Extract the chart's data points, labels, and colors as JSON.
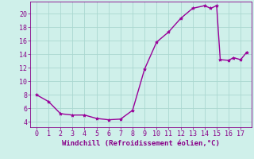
{
  "x": [
    0,
    1,
    2,
    3,
    4,
    5,
    6,
    7,
    8,
    9,
    10,
    11,
    12,
    13,
    14,
    14.5,
    15,
    15.3,
    16,
    16.4,
    17,
    17.5
  ],
  "y": [
    8,
    7,
    5.2,
    5,
    5,
    4.5,
    4.3,
    4.4,
    5.7,
    11.8,
    15.8,
    17.3,
    19.3,
    20.8,
    21.2,
    20.8,
    21.2,
    13.2,
    13.1,
    13.5,
    13.2,
    14.3
  ],
  "line_color": "#990099",
  "marker": "*",
  "marker_size": 3,
  "bg_color": "#cff0ea",
  "grid_color": "#aad8d0",
  "xlabel": "Windchill (Refroidissement éolien,°C)",
  "xlabel_color": "#880088",
  "tick_color": "#880088",
  "xlim": [
    -0.5,
    17.9
  ],
  "ylim": [
    3.2,
    21.8
  ],
  "xticks": [
    0,
    1,
    2,
    3,
    4,
    5,
    6,
    7,
    8,
    9,
    10,
    11,
    12,
    13,
    14,
    15,
    16,
    17
  ],
  "yticks": [
    4,
    6,
    8,
    10,
    12,
    14,
    16,
    18,
    20
  ],
  "line_width": 1.0
}
